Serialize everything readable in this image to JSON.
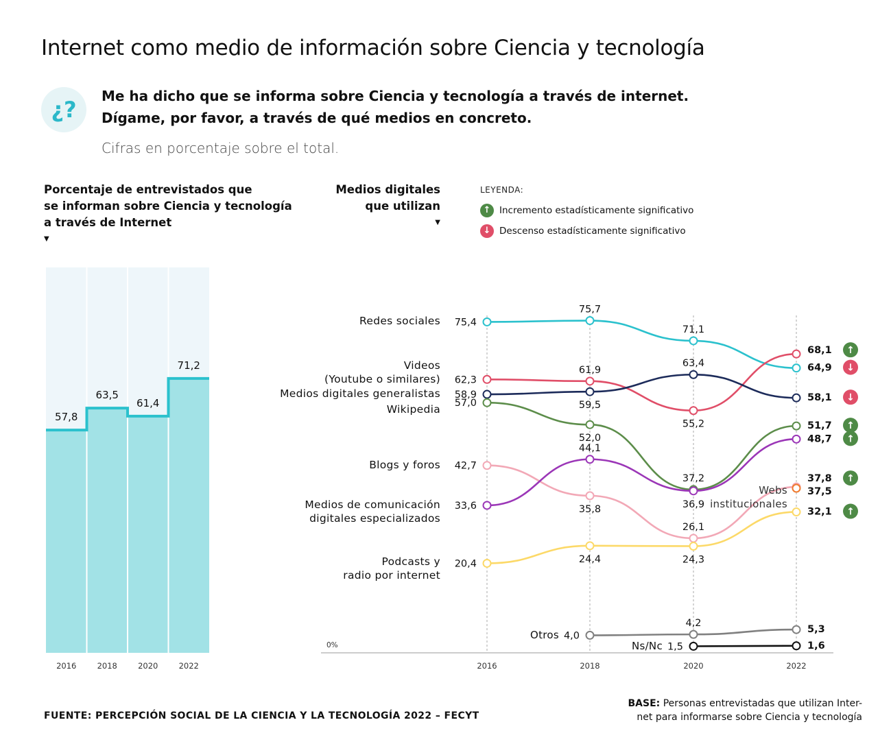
{
  "title": "Internet como medio de información sobre Ciencia y tecnología",
  "question_icon": "¿?",
  "question_lines": [
    "Me ha dicho que se informa sobre Ciencia y tecnología a través de internet.",
    "Dígame, por favor, a través de qué medios en concreto."
  ],
  "figures_note": "Cifras en porcentaje sobre el total.",
  "left_panel": {
    "heading_lines": [
      "Porcentaje de entrevistados que",
      "se informan sobre Ciencia y tecnología",
      "a través de Internet"
    ],
    "marker": "▼"
  },
  "right_panel": {
    "heading_lines": [
      "Medios digitales",
      "que utilizan"
    ],
    "marker": "▼"
  },
  "legend": {
    "title": "LEYENDA:",
    "items": [
      {
        "symbol": "↑",
        "label": "Incremento estadísticamente significativo",
        "color": "#4e8a46"
      },
      {
        "symbol": "↓",
        "label": "Descenso estadísticamente significativo",
        "color": "#e04e68"
      }
    ]
  },
  "chart_data": [
    {
      "type": "bar",
      "categories": [
        "2016",
        "2018",
        "2020",
        "2022"
      ],
      "values": [
        57.8,
        63.5,
        61.4,
        71.2
      ],
      "labels": [
        "57,8",
        "63,5",
        "61,4",
        "71,2"
      ],
      "ylim": [
        0,
        100
      ],
      "colors": {
        "fill": "#a2e2e6",
        "line": "#2bc1cd",
        "background": "#eef6fa"
      }
    },
    {
      "type": "line",
      "x": [
        "2016",
        "2018",
        "2020",
        "2022"
      ],
      "zero_label": "0%",
      "ylim": [
        0,
        100
      ],
      "series": [
        {
          "name": "Redes sociales",
          "name_lines": [
            "Redes sociales"
          ],
          "color": "#2bc1cd",
          "values": [
            75.4,
            75.7,
            71.1,
            64.9
          ],
          "labels": [
            "75,4",
            "75,7",
            "71,1",
            "64,9"
          ],
          "trend": "down"
        },
        {
          "name": "Videos (Youtube o similares)",
          "name_lines": [
            "Videos",
            "(Youtube o similares)"
          ],
          "color": "#e04e68",
          "values": [
            62.3,
            61.9,
            55.2,
            68.1
          ],
          "labels": [
            "62,3",
            "61,9",
            "55,2",
            "68,1"
          ],
          "trend": "up"
        },
        {
          "name": "Medios digitales generalistas",
          "name_lines": [
            "Medios digitales generalistas"
          ],
          "color": "#1c2b5a",
          "values": [
            58.9,
            59.5,
            63.4,
            58.1
          ],
          "labels": [
            "58,9",
            "59,5",
            "63,4",
            "58,1"
          ],
          "trend": "down"
        },
        {
          "name": "Wikipedia",
          "name_lines": [
            "Wikipedia"
          ],
          "color": "#5c8d4a",
          "values": [
            57.0,
            52.0,
            37.2,
            51.7
          ],
          "labels": [
            "57,0",
            "52,0",
            "37,2",
            "51,7"
          ],
          "trend": "up"
        },
        {
          "name": "Blogs y foros",
          "name_lines": [
            "Blogs y foros"
          ],
          "color": "#f2a8b6",
          "values": [
            42.7,
            35.8,
            26.1,
            37.8
          ],
          "labels": [
            "42,7",
            "35,8",
            "26,1",
            "37,8"
          ],
          "trend": "up"
        },
        {
          "name": "Medios de comunicación digitales especializados",
          "name_lines": [
            "Medios de comunicación",
            "digitales especializados"
          ],
          "color": "#9b36b7",
          "values": [
            33.6,
            44.1,
            36.9,
            48.7
          ],
          "labels": [
            "33,6",
            "44,1",
            "36,9",
            "48,7"
          ],
          "trend": "up"
        },
        {
          "name": "Podcasts y radio por internet",
          "name_lines": [
            "Podcasts y",
            "radio por internet"
          ],
          "color": "#fcd968",
          "values": [
            20.4,
            24.4,
            24.3,
            32.1
          ],
          "labels": [
            "20,4",
            "24,4",
            "24,3",
            "32,1"
          ],
          "trend": "up"
        },
        {
          "name": "Webs institucionales",
          "name_lines": [
            "Webs",
            "institucionales"
          ],
          "color": "#f07a2e",
          "values": [
            null,
            null,
            null,
            37.5
          ],
          "labels": [
            null,
            null,
            null,
            "37,5"
          ],
          "trend": null
        },
        {
          "name": "Otros",
          "name_lines": [
            "Otros"
          ],
          "color": "#808080",
          "values": [
            null,
            4.0,
            4.2,
            5.3
          ],
          "labels": [
            null,
            "4,0",
            "4,2",
            "5,3"
          ],
          "trend": null
        },
        {
          "name": "Ns/Nc",
          "name_lines": [
            "Ns/Nc"
          ],
          "color": "#111111",
          "values": [
            null,
            null,
            1.5,
            1.6
          ],
          "labels": [
            null,
            null,
            "1,5",
            "1,6"
          ],
          "trend": null
        }
      ]
    }
  ],
  "source": "FUENTE: PERCEPCIÓN SOCIAL DE LA CIENCIA Y LA TECNOLOGÍA 2022 – FECYT",
  "base": {
    "label": "BASE:",
    "line1": "Personas entrevistadas que utilizan Inter-",
    "line2": "net para informarse sobre Ciencia y tecnología"
  }
}
